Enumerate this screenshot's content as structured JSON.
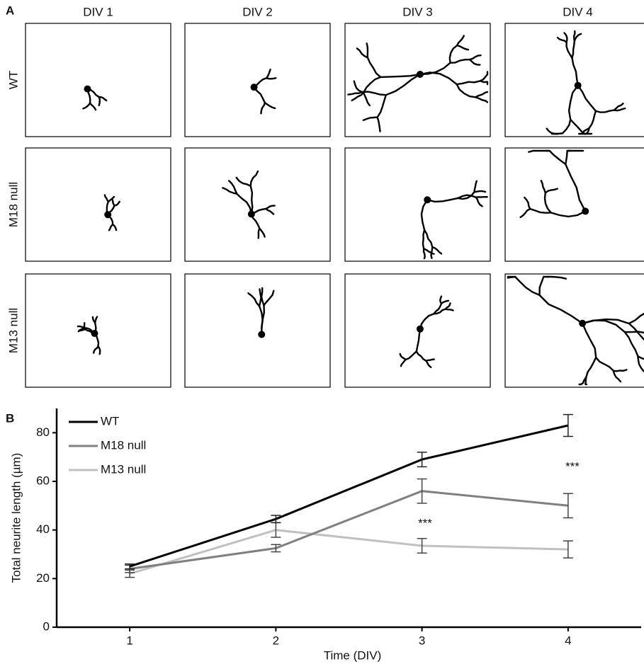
{
  "figure": {
    "panel_a_label": "A",
    "columns": [
      "DIV 1",
      "DIV 2",
      "DIV 3",
      "DIV 4"
    ],
    "rows": [
      "WT",
      "M18 null",
      "M13 null"
    ],
    "panel_b_label": "B"
  },
  "chart_data": {
    "type": "line",
    "x_label": "Time (DIV)",
    "y_label": "Total neurite length (µm)",
    "x": [
      1,
      2,
      3,
      4
    ],
    "xlim": [
      0.5,
      4.5
    ],
    "xticks": [
      1,
      2,
      3,
      4
    ],
    "ylim": [
      0,
      90
    ],
    "yticks": [
      0,
      20,
      40,
      60,
      80
    ],
    "legend": "upper left",
    "series": [
      {
        "name": "WT",
        "color": "#000000",
        "values": [
          25,
          44.5,
          69,
          83
        ],
        "errors": [
          1,
          1.5,
          3,
          4.5
        ]
      },
      {
        "name": "M18 null",
        "color": "#808080",
        "values": [
          24,
          32.5,
          56,
          50
        ],
        "errors": [
          1.5,
          1.5,
          5,
          5
        ]
      },
      {
        "name": "M13 null",
        "color": "#c0c0c0",
        "values": [
          22,
          40,
          33.5,
          32
        ],
        "errors": [
          1.5,
          3,
          3,
          3.5
        ]
      }
    ],
    "annotations": [
      "***",
      "***"
    ]
  }
}
